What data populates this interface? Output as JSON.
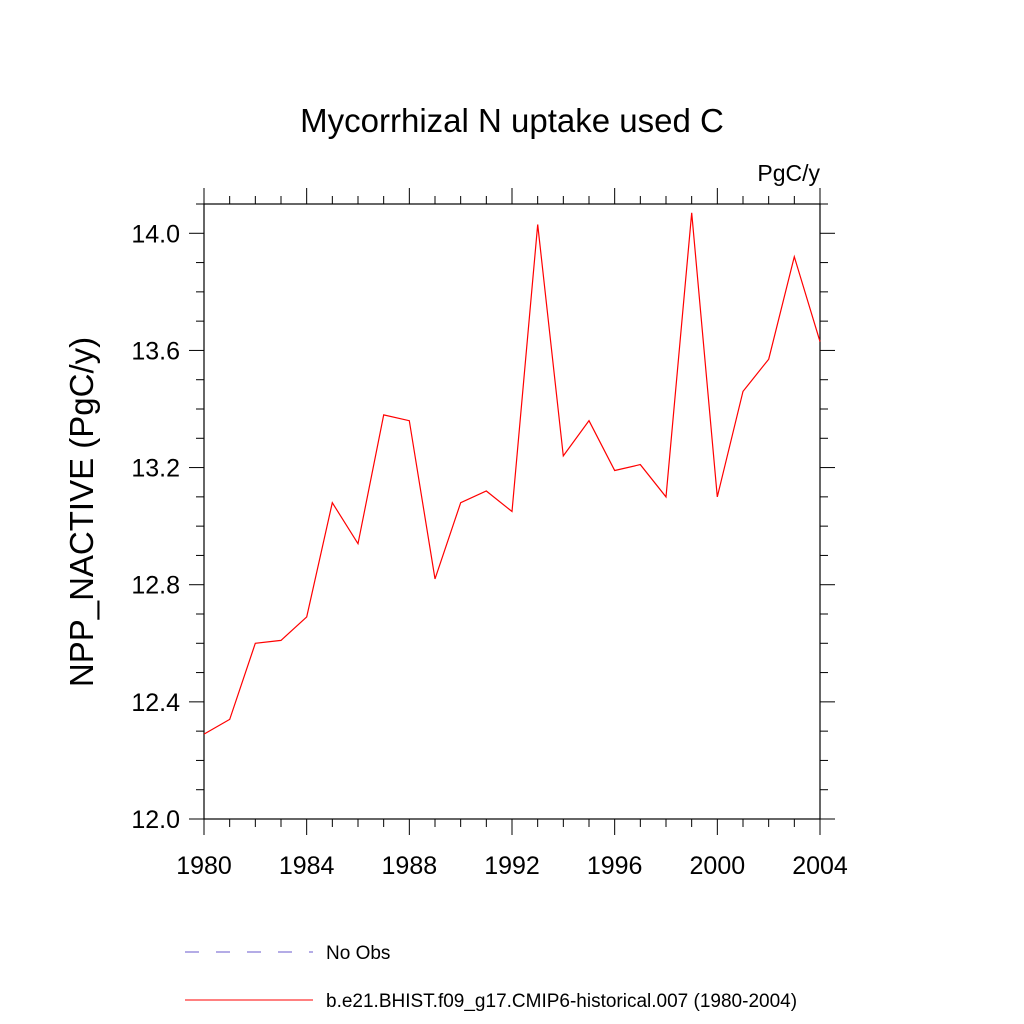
{
  "chart_data": {
    "type": "line",
    "title": "Mycorrhizal N uptake used C",
    "units_label": "PgC/y",
    "ylabel": "NPP_NACTIVE  (PgC/y)",
    "xlabel": "",
    "xlim": [
      1980,
      2004
    ],
    "ylim": [
      12.0,
      14.1
    ],
    "x_tick_labels": [
      "1980",
      "1984",
      "1988",
      "1992",
      "1996",
      "2000",
      "2004"
    ],
    "x_ticks": [
      1980,
      1984,
      1988,
      1992,
      1996,
      2000,
      2004
    ],
    "y_tick_labels": [
      "12.0",
      "12.4",
      "12.8",
      "13.2",
      "13.6",
      "14.0"
    ],
    "y_ticks": [
      12.0,
      12.4,
      12.8,
      13.2,
      13.6,
      14.0
    ],
    "grid": false,
    "legend_position": "bottom",
    "series": [
      {
        "name": "b.e21.BHIST.f09_g17.CMIP6-historical.007 (1980-2004)",
        "color": "#ff0000",
        "style": "solid",
        "x": [
          1980,
          1981,
          1982,
          1983,
          1984,
          1985,
          1986,
          1987,
          1988,
          1989,
          1990,
          1991,
          1992,
          1993,
          1994,
          1995,
          1996,
          1997,
          1998,
          1999,
          2000,
          2001,
          2002,
          2003,
          2004
        ],
        "values": [
          12.29,
          12.34,
          12.6,
          12.61,
          12.69,
          13.08,
          12.94,
          13.38,
          13.36,
          12.82,
          13.08,
          13.12,
          13.05,
          14.03,
          13.24,
          13.36,
          13.19,
          13.21,
          13.1,
          14.07,
          13.1,
          13.46,
          13.57,
          13.92,
          13.63
        ]
      }
    ],
    "legend": [
      {
        "label": "No Obs",
        "color": "#6a5acd",
        "style": "dashed"
      },
      {
        "label": "b.e21.BHIST.f09_g17.CMIP6-historical.007 (1980-2004)",
        "color": "#ff0000",
        "style": "solid"
      }
    ]
  }
}
